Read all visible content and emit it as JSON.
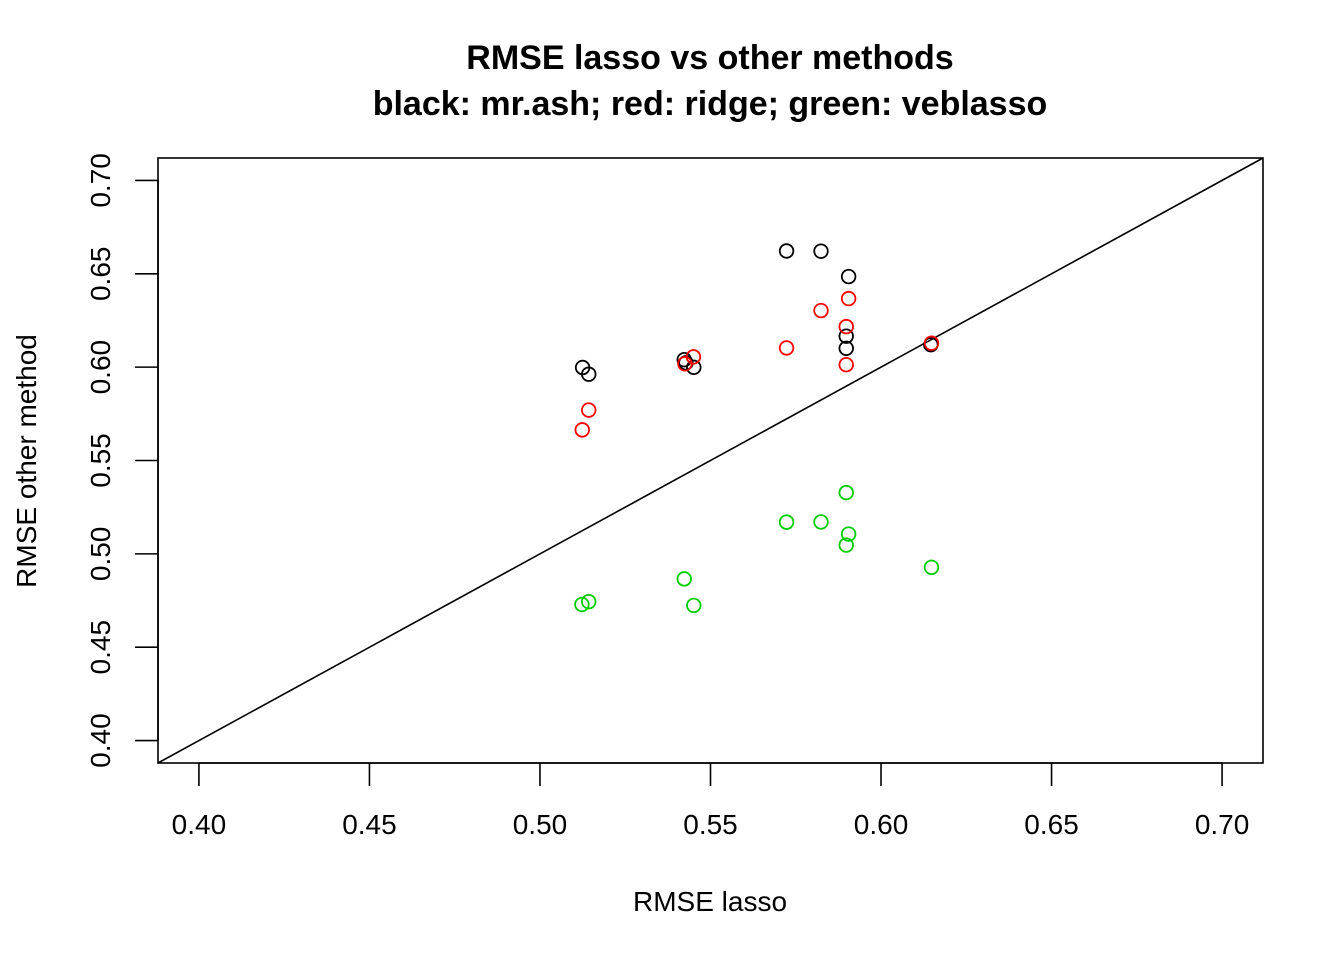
{
  "chart_data": {
    "type": "scatter",
    "title": "RMSE lasso vs other methods",
    "subtitle": "black: mr.ash; red: ridge; green: veblasso",
    "xlabel": "RMSE lasso",
    "ylabel": "RMSE other method",
    "xlim": [
      0.388,
      0.712
    ],
    "ylim": [
      0.388,
      0.712
    ],
    "xticks": [
      "0.40",
      "0.45",
      "0.50",
      "0.55",
      "0.60",
      "0.65",
      "0.70"
    ],
    "yticks": [
      "0.40",
      "0.45",
      "0.50",
      "0.55",
      "0.60",
      "0.65",
      "0.70"
    ],
    "grid": false,
    "legend": "none",
    "reference_line": "y = x",
    "series": [
      {
        "color": "#000000",
        "points": [
          [
            0.5125,
            0.5998
          ],
          [
            0.5143,
            0.5962
          ],
          [
            0.5423,
            0.604
          ],
          [
            0.5428,
            0.6023
          ],
          [
            0.5451,
            0.5999
          ],
          [
            0.5723,
            0.6622
          ],
          [
            0.5824,
            0.6621
          ],
          [
            0.5905,
            0.6485
          ],
          [
            0.5898,
            0.6166
          ],
          [
            0.5898,
            0.6101
          ],
          [
            0.6146,
            0.612
          ]
        ]
      },
      {
        "color": "#ff0000",
        "points": [
          [
            0.5124,
            0.5664
          ],
          [
            0.5143,
            0.577
          ],
          [
            0.5425,
            0.6018
          ],
          [
            0.545,
            0.6055
          ],
          [
            0.5723,
            0.6103
          ],
          [
            0.5824,
            0.6303
          ],
          [
            0.5905,
            0.6367
          ],
          [
            0.5898,
            0.6217
          ],
          [
            0.5898,
            0.6013
          ],
          [
            0.6148,
            0.6128
          ]
        ]
      },
      {
        "color": "#00cd00",
        "points": [
          [
            0.5123,
            0.4729
          ],
          [
            0.5143,
            0.4744
          ],
          [
            0.5423,
            0.4866
          ],
          [
            0.5451,
            0.4724
          ],
          [
            0.5723,
            0.517
          ],
          [
            0.5824,
            0.5171
          ],
          [
            0.5898,
            0.5328
          ],
          [
            0.5905,
            0.5106
          ],
          [
            0.5898,
            0.5047
          ],
          [
            0.6148,
            0.4928
          ]
        ]
      }
    ]
  }
}
